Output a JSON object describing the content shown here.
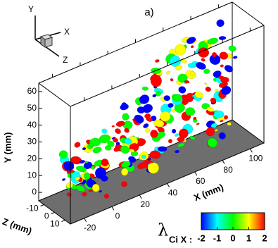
{
  "chart_data": {
    "type": "isosurface-3d",
    "title": "a)",
    "x_label": "X (mm)",
    "y_label": "Y (mm)",
    "z_label": "Z (mm)",
    "xlim": [
      -30,
      110
    ],
    "ylim": [
      -5,
      65
    ],
    "zlim": [
      -15,
      15
    ],
    "xticks": [
      -20,
      0,
      20,
      40,
      60,
      80,
      100
    ],
    "yticks": [
      0,
      10,
      20,
      30,
      40,
      50,
      60
    ],
    "zticks": [
      -10,
      0,
      10
    ],
    "floor_color": "#6e6e6e",
    "triad": {
      "y": "Y",
      "x": "X",
      "z": "Z"
    },
    "colorbar": {
      "symbol": "λ",
      "subscript": "Ci X :",
      "lim": [
        -2,
        2
      ],
      "ticks": [
        -2,
        -1,
        0,
        1,
        2
      ],
      "colors": [
        "#0000ff",
        "#00ffff",
        "#00ff00",
        "#ffff00",
        "#ff0000"
      ]
    }
  }
}
